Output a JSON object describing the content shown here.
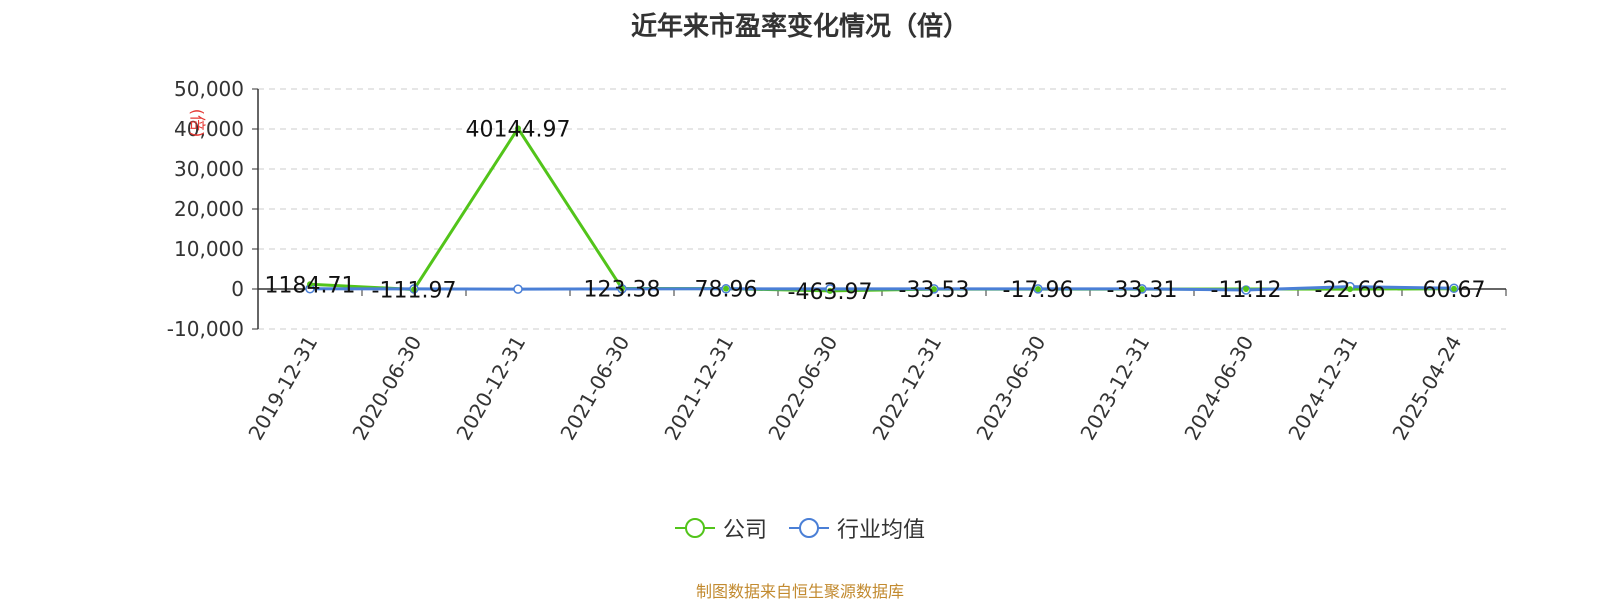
{
  "chart_data": {
    "type": "line",
    "title": "近年来市盈率变化情况（倍）",
    "ylabel": "(倍)",
    "xlabel": "",
    "categories": [
      "2019-12-31",
      "2020-06-30",
      "2020-12-31",
      "2021-06-30",
      "2021-12-31",
      "2022-06-30",
      "2022-12-31",
      "2023-06-30",
      "2023-12-31",
      "2024-06-30",
      "2024-12-31",
      "2025-04-24"
    ],
    "ylim": [
      -10000,
      50000
    ],
    "yticks": [
      -10000,
      0,
      10000,
      20000,
      30000,
      40000,
      50000
    ],
    "ytick_labels": [
      "-10,000",
      "0",
      "10,000",
      "20,000",
      "30,000",
      "40,000",
      "50,000"
    ],
    "grid": true,
    "legend_position": "bottom",
    "series": [
      {
        "name": "公司",
        "color": "#52c41a",
        "values": [
          1184.71,
          -111.97,
          40144.97,
          123.38,
          78.96,
          -463.97,
          -33.53,
          -17.96,
          -33.31,
          -11.12,
          -22.66,
          60.67
        ],
        "labels": [
          "1184.71",
          "-111.97",
          "40144.97",
          "123.38",
          "78.96",
          "-463.97",
          "-33.53",
          "-17.96",
          "-33.31",
          "-11.12",
          "-22.66",
          "60.67"
        ]
      },
      {
        "name": "行业均值",
        "color": "#4a7fd6",
        "values": [
          60,
          20,
          -30,
          40,
          50,
          20,
          35,
          30,
          20,
          -250,
          600,
          180
        ]
      }
    ]
  },
  "footer": "制图数据来自恒生聚源数据库"
}
